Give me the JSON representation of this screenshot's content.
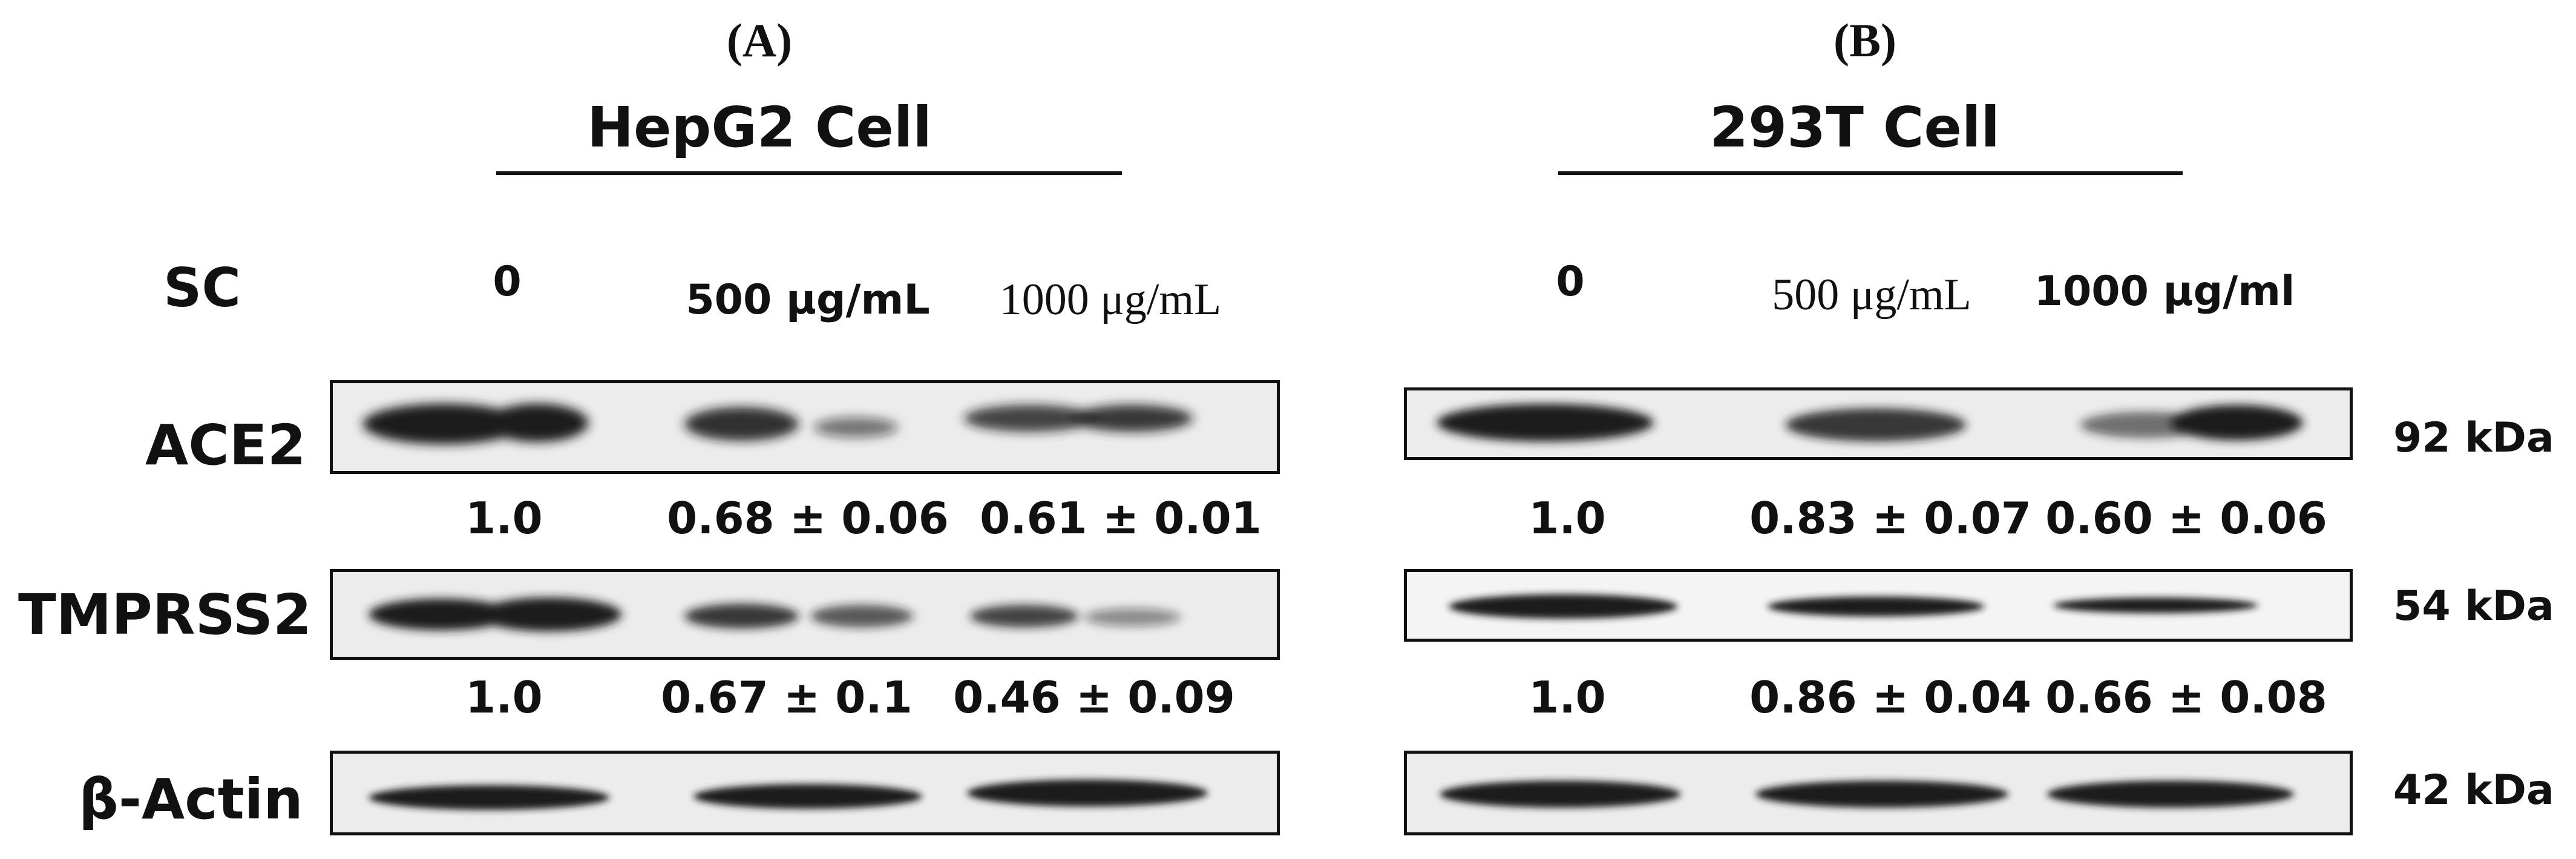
{
  "panels": [
    {
      "letter": "(A)",
      "cell_line": "HepG2 Cell",
      "doses": [
        "0",
        "500 μg/mL",
        "1000 μg/mL"
      ],
      "quant": {
        "ACE2": [
          "1.0",
          "0.68 ± 0.06",
          "0.61 ± 0.01"
        ],
        "TMPRSS2": [
          "1.0",
          "0.67 ± 0.1",
          "0.46 ± 0.09"
        ]
      }
    },
    {
      "letter": "(B)",
      "cell_line": "293T Cell",
      "doses": [
        "0",
        "500 μg/mL",
        "1000 μg/ml"
      ],
      "quant": {
        "ACE2": [
          "1.0",
          "0.83 ± 0.07",
          "0.60 ± 0.06"
        ],
        "TMPRSS2": [
          "1.0",
          "0.86 ± 0.04",
          "0.66 ± 0.08"
        ]
      }
    }
  ],
  "row_labels": {
    "treatment": "SC",
    "ace2": "ACE2",
    "tmprss2": "TMPRSS2",
    "actin": "β-Actin"
  },
  "molecular_weights": {
    "ace2": "92 kDa",
    "tmprss2": "54 kDa",
    "actin": "42 kDa"
  },
  "band_colors": {
    "band": "#1a1a1a",
    "background": "#ececec"
  }
}
